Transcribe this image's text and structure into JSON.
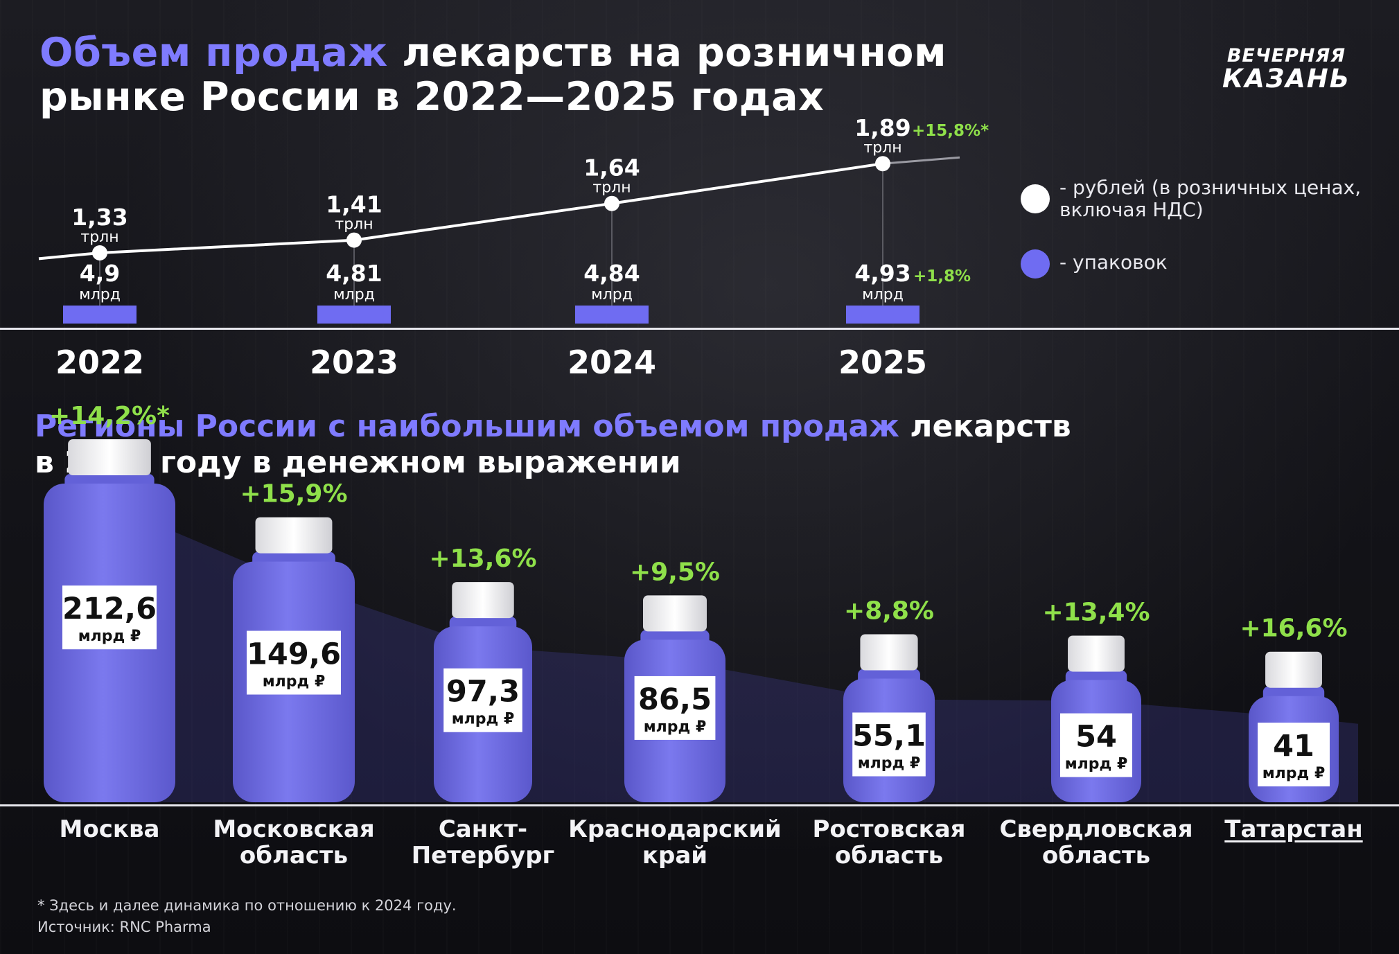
{
  "title": {
    "accent": "Объем продаж",
    "line1_rest": " лекарств на розничном",
    "line2": "рынке России в 2022—2025 годах"
  },
  "logo": {
    "line1": "ВЕЧЕРНЯЯ",
    "line2": "КАЗАНЬ"
  },
  "legend": {
    "rub": "- рублей (в розничных ценах, включая НДС)",
    "packs": "- упаковок"
  },
  "colors": {
    "accent": "#7f7bff",
    "bottle": "#7270e8",
    "growth": "#8fe04a",
    "bar": "#6f6cf2"
  },
  "chart_data": [
    {
      "type": "line",
      "x": [
        "2022",
        "2023",
        "2024",
        "2025"
      ],
      "series": [
        {
          "name": "рублей (в розничных ценах, включая НДС)",
          "values": [
            1.33,
            1.41,
            1.64,
            1.89
          ],
          "value_labels": [
            "1,33",
            "1,41",
            "1,64",
            "1,89"
          ],
          "unit": "трлн"
        },
        {
          "name": "упаковок",
          "values": [
            4.9,
            4.81,
            4.84,
            4.93
          ],
          "value_labels": [
            "4,9",
            "4,81",
            "4,84",
            "4,93"
          ],
          "unit": "млрд"
        }
      ],
      "annotations": [
        {
          "x": "2025",
          "series": "рублей (в розничных ценах, включая НДС)",
          "text": "+15,8%*"
        },
        {
          "x": "2025",
          "series": "упаковок",
          "text": "+1,8%"
        }
      ]
    },
    {
      "type": "bar",
      "title_accent": "Регионы России с наибольшим объемом продаж",
      "title_rest": " лекарств",
      "title_line2": "в 2025 году в денежном выражении",
      "unit": "млрд ₽",
      "categories": [
        "Москва",
        "Московская область",
        "Санкт-Петербург",
        "Краснодарский край",
        "Ростовская область",
        "Свердловская область",
        "Татарстан"
      ],
      "category_lines": [
        [
          "Москва"
        ],
        [
          "Московская",
          "область"
        ],
        [
          "Санкт-",
          "Петербург"
        ],
        [
          "Краснодарский",
          "край"
        ],
        [
          "Ростовская",
          "область"
        ],
        [
          "Свердловская",
          "область"
        ],
        [
          "Татарстан"
        ]
      ],
      "values": [
        212.6,
        149.6,
        97.3,
        86.5,
        55.1,
        54,
        41
      ],
      "value_labels": [
        "212,6",
        "149,6",
        "97,3",
        "86,5",
        "55,1",
        "54",
        "41"
      ],
      "growth": [
        "+14,2%*",
        "+15,9%",
        "+13,6%",
        "+9,5%",
        "+8,8%",
        "+13,4%",
        "+16,6%"
      ],
      "highlight": "Татарстан"
    }
  ],
  "footnote": {
    "line1": "* Здесь и далее динамика по отношению к 2024 году.",
    "line2": "Источник: RNC Pharma"
  }
}
